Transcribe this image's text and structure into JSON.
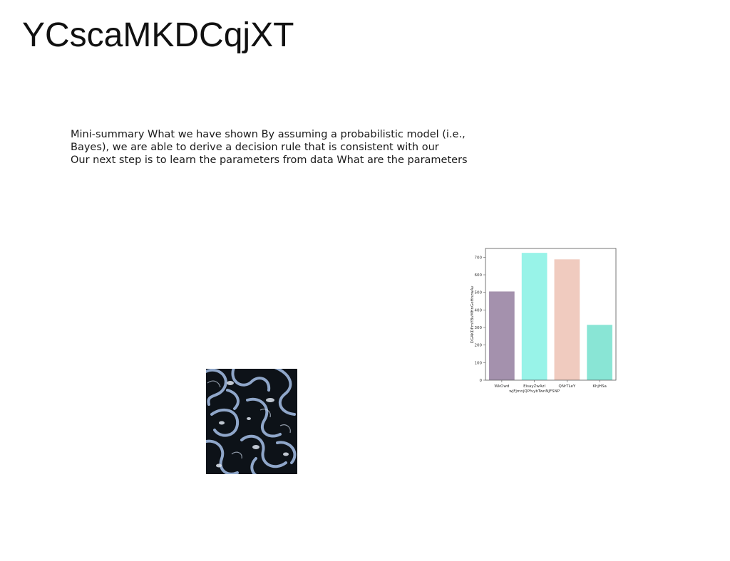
{
  "slide": {
    "title": "YCscaMKDCqjXT",
    "summary_lines": [
      "Mini-summary What we have shown By assuming a probabilistic model (i.e.,",
      "Bayes), we are able to derive a decision rule that is consistent with our",
      "Our next step is to learn the parameters from data What are the parameters"
    ]
  },
  "chart_data": {
    "type": "bar",
    "categories": [
      "WkOwd",
      "EisayZwAzl\nwjFjmnjQPfvybTwnNJFSNP",
      "QNrTLeY",
      "KhjHSa"
    ],
    "values": [
      505,
      725,
      688,
      315
    ],
    "colors": [
      "#a491ad",
      "#98f3e8",
      "#f0cbbf",
      "#89e5d5"
    ],
    "title": "",
    "xlabel": "",
    "ylabel": "DGAKDFmYBvMHnGeHnzwAv",
    "yticks": [
      0,
      100,
      200,
      300,
      400,
      500,
      600,
      700
    ],
    "ylim": [
      0,
      750
    ],
    "grid": false,
    "legend": "none"
  },
  "image": {
    "kind": "abstract-swirl-pattern",
    "colors": [
      "#0d1218",
      "#8fa6c9",
      "#dfe6f1"
    ]
  }
}
